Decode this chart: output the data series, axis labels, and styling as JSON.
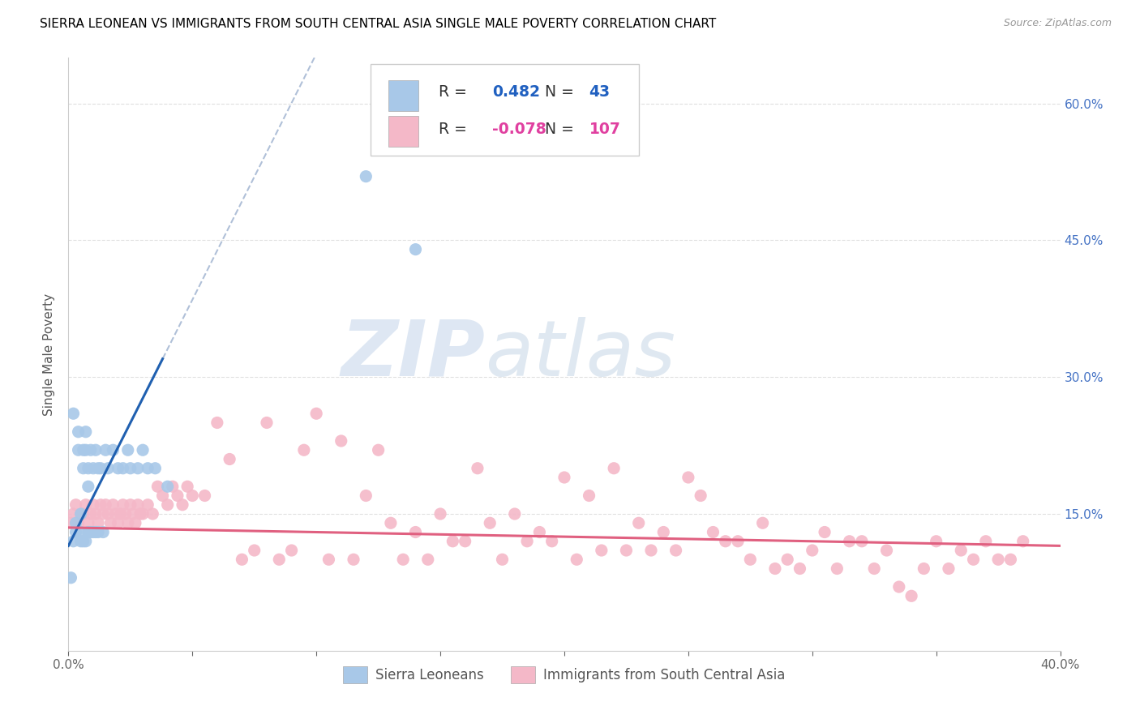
{
  "title": "SIERRA LEONEAN VS IMMIGRANTS FROM SOUTH CENTRAL ASIA SINGLE MALE POVERTY CORRELATION CHART",
  "source": "Source: ZipAtlas.com",
  "ylabel": "Single Male Poverty",
  "xlim": [
    0.0,
    0.4
  ],
  "ylim": [
    0.0,
    0.65
  ],
  "xtick_labels": [
    "0.0%",
    "",
    "",
    "",
    "",
    "",
    "",
    "",
    "40.0%"
  ],
  "xtick_vals": [
    0.0,
    0.05,
    0.1,
    0.15,
    0.2,
    0.25,
    0.3,
    0.35,
    0.4
  ],
  "ytick_labels": [
    "15.0%",
    "30.0%",
    "45.0%",
    "60.0%"
  ],
  "ytick_vals": [
    0.15,
    0.3,
    0.45,
    0.6
  ],
  "blue_color": "#a8c8e8",
  "pink_color": "#f4b8c8",
  "blue_line_color": "#2060b0",
  "pink_line_color": "#e06080",
  "dash_color": "#b0c0d8",
  "r_blue": 0.482,
  "n_blue": 43,
  "r_pink": -0.078,
  "n_pink": 107,
  "legend_label_blue": "Sierra Leoneans",
  "legend_label_pink": "Immigrants from South Central Asia",
  "watermark_zip": "ZIP",
  "watermark_atlas": "atlas",
  "blue_scatter_x": [
    0.001,
    0.002,
    0.002,
    0.003,
    0.003,
    0.004,
    0.004,
    0.005,
    0.005,
    0.005,
    0.006,
    0.006,
    0.006,
    0.007,
    0.007,
    0.007,
    0.008,
    0.008,
    0.008,
    0.009,
    0.009,
    0.01,
    0.01,
    0.011,
    0.011,
    0.012,
    0.012,
    0.013,
    0.014,
    0.015,
    0.016,
    0.018,
    0.02,
    0.022,
    0.024,
    0.025,
    0.028,
    0.03,
    0.032,
    0.035,
    0.04,
    0.12,
    0.14
  ],
  "blue_scatter_y": [
    0.08,
    0.26,
    0.12,
    0.14,
    0.13,
    0.24,
    0.22,
    0.15,
    0.13,
    0.12,
    0.22,
    0.2,
    0.12,
    0.24,
    0.22,
    0.12,
    0.2,
    0.18,
    0.13,
    0.22,
    0.13,
    0.2,
    0.13,
    0.22,
    0.13,
    0.2,
    0.13,
    0.2,
    0.13,
    0.22,
    0.2,
    0.22,
    0.2,
    0.2,
    0.22,
    0.2,
    0.2,
    0.22,
    0.2,
    0.2,
    0.18,
    0.52,
    0.44
  ],
  "pink_scatter_x": [
    0.001,
    0.002,
    0.003,
    0.004,
    0.005,
    0.006,
    0.007,
    0.008,
    0.009,
    0.01,
    0.011,
    0.012,
    0.013,
    0.014,
    0.015,
    0.016,
    0.017,
    0.018,
    0.019,
    0.02,
    0.021,
    0.022,
    0.023,
    0.024,
    0.025,
    0.026,
    0.027,
    0.028,
    0.029,
    0.03,
    0.032,
    0.034,
    0.036,
    0.038,
    0.04,
    0.042,
    0.044,
    0.046,
    0.048,
    0.05,
    0.055,
    0.06,
    0.065,
    0.07,
    0.075,
    0.08,
    0.085,
    0.09,
    0.095,
    0.1,
    0.105,
    0.11,
    0.115,
    0.12,
    0.125,
    0.13,
    0.135,
    0.14,
    0.145,
    0.15,
    0.155,
    0.16,
    0.165,
    0.17,
    0.175,
    0.18,
    0.185,
    0.19,
    0.195,
    0.2,
    0.205,
    0.21,
    0.215,
    0.22,
    0.225,
    0.23,
    0.235,
    0.24,
    0.245,
    0.25,
    0.255,
    0.26,
    0.265,
    0.27,
    0.275,
    0.28,
    0.285,
    0.29,
    0.295,
    0.3,
    0.305,
    0.31,
    0.315,
    0.32,
    0.325,
    0.33,
    0.335,
    0.34,
    0.345,
    0.35,
    0.355,
    0.36,
    0.365,
    0.37,
    0.375,
    0.38,
    0.385
  ],
  "pink_scatter_y": [
    0.14,
    0.15,
    0.16,
    0.14,
    0.15,
    0.15,
    0.16,
    0.14,
    0.15,
    0.16,
    0.15,
    0.14,
    0.16,
    0.15,
    0.16,
    0.15,
    0.14,
    0.16,
    0.15,
    0.14,
    0.15,
    0.16,
    0.15,
    0.14,
    0.16,
    0.15,
    0.14,
    0.16,
    0.15,
    0.15,
    0.16,
    0.15,
    0.18,
    0.17,
    0.16,
    0.18,
    0.17,
    0.16,
    0.18,
    0.17,
    0.17,
    0.25,
    0.21,
    0.1,
    0.11,
    0.25,
    0.1,
    0.11,
    0.22,
    0.26,
    0.1,
    0.23,
    0.1,
    0.17,
    0.22,
    0.14,
    0.1,
    0.13,
    0.1,
    0.15,
    0.12,
    0.12,
    0.2,
    0.14,
    0.1,
    0.15,
    0.12,
    0.13,
    0.12,
    0.19,
    0.1,
    0.17,
    0.11,
    0.2,
    0.11,
    0.14,
    0.11,
    0.13,
    0.11,
    0.19,
    0.17,
    0.13,
    0.12,
    0.12,
    0.1,
    0.14,
    0.09,
    0.1,
    0.09,
    0.11,
    0.13,
    0.09,
    0.12,
    0.12,
    0.09,
    0.11,
    0.07,
    0.06,
    0.09,
    0.12,
    0.09,
    0.11,
    0.1,
    0.12,
    0.1,
    0.1,
    0.12
  ],
  "title_fontsize": 11,
  "axis_label_fontsize": 11,
  "tick_fontsize": 11,
  "right_tick_color": "#4472c4"
}
